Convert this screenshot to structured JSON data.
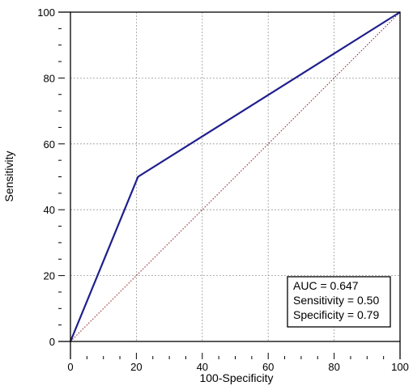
{
  "chart_data": {
    "type": "line",
    "xlabel": "100-Specificity",
    "ylabel": "Sensitivity",
    "xlim": [
      0,
      100
    ],
    "ylim": [
      0,
      100
    ],
    "x_ticks": [
      0,
      20,
      40,
      60,
      80,
      100
    ],
    "y_ticks": [
      0,
      20,
      40,
      60,
      80,
      100
    ],
    "grid": true,
    "series": [
      {
        "style": "solid",
        "color": "#1f1f8c",
        "x": [
          0,
          20.5,
          100
        ],
        "y": [
          0,
          50,
          100
        ]
      },
      {
        "style": "dotted",
        "color": "#8b1a1a",
        "x": [
          0,
          100
        ],
        "y": [
          0,
          100
        ]
      }
    ],
    "annotation": {
      "placement": "bottom-right",
      "lines": [
        "AUC = 0.647",
        "Sensitivity = 0.50",
        "Specificity = 0.79"
      ]
    }
  }
}
